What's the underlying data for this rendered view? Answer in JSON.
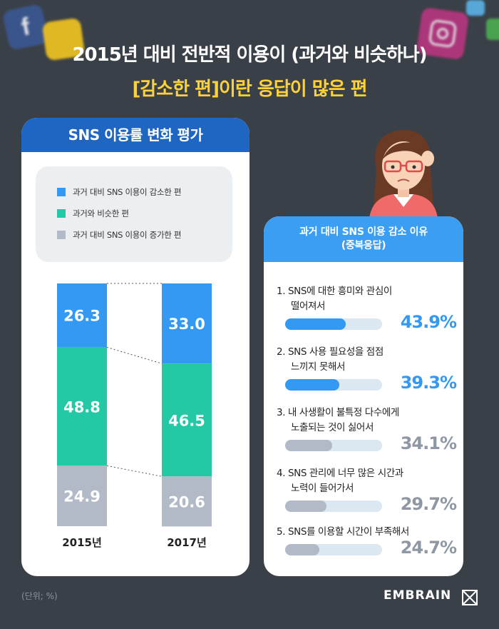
{
  "header": {
    "line1": "2015년 대비 전반적 이용이 (과거와 비슷하나)",
    "line2": "[감소한 편]이란 응답이 많은 편"
  },
  "colors": {
    "background": "#3a4047",
    "decreased": "#3399f3",
    "similar": "#22c9a4",
    "increased": "#b1bac6",
    "highlight": "#fbd13c",
    "title_bar": "#1f66c2",
    "right_title_bar": "#3b9ef3"
  },
  "left_card": {
    "title": "SNS 이용률 변화 평가",
    "legend": [
      {
        "label": "과거 대비 SNS 이용이 감소한 편",
        "color": "#3399f3"
      },
      {
        "label": "과거와 비슷한 편",
        "color": "#22c9a4"
      },
      {
        "label": "과거 대비 SNS 이용이 증가한 편",
        "color": "#b1bac6"
      }
    ]
  },
  "chart_data": [
    {
      "type": "bar",
      "stacked": true,
      "title": "SNS 이용률 변화 평가",
      "categories": [
        "2015년",
        "2017년"
      ],
      "series": [
        {
          "name": "과거 대비 SNS 이용이 감소한 편",
          "values": [
            26.3,
            33.0
          ],
          "labels": [
            "26.3",
            "33.0"
          ],
          "color": "#3399f3"
        },
        {
          "name": "과거와 비슷한 편",
          "values": [
            48.8,
            46.5
          ],
          "labels": [
            "48.8",
            "46.5"
          ],
          "color": "#22c9a4"
        },
        {
          "name": "과거 대비 SNS 이용이 증가한 편",
          "values": [
            24.9,
            20.6
          ],
          "labels": [
            "24.9",
            "20.6"
          ],
          "color": "#b1bac6"
        }
      ],
      "ylim": [
        0,
        100
      ]
    },
    {
      "type": "bar",
      "orientation": "horizontal",
      "title": "과거 대비 SNS 이용 감소 이유",
      "subtitle": "(중복응답)",
      "categories": [
        "SNS에 대한 흥미와 관심이 떨어져서",
        "SNS 사용 필요성을 점점 느끼지 못해서",
        "내 사생활이 불특정 다수에게 노출되는 것이 싫어서",
        "SNS 관리에 너무 많은 시간과 노력이 들어가서",
        "SNS를 이용할 시간이 부족해서"
      ],
      "values": [
        43.9,
        39.3,
        34.1,
        29.7,
        24.7
      ],
      "xlim": [
        0,
        100
      ]
    }
  ],
  "right_card": {
    "title": "과거 대비 SNS 이용 감소 이유",
    "subtitle": "(중복응답)",
    "reasons": [
      {
        "line1": "1. SNS에 대한 흥미와 관심이",
        "line2": "떨어져서",
        "pct": "43.9%",
        "value": 43.9,
        "highlight": true
      },
      {
        "line1": "2. SNS 사용 필요성을 점점",
        "line2": "느끼지 못해서",
        "pct": "39.3%",
        "value": 39.3,
        "highlight": true
      },
      {
        "line1": "3. 내 사생활이 불특정 다수에게",
        "line2": "노출되는 것이 싫어서",
        "pct": "34.1%",
        "value": 34.1,
        "highlight": false
      },
      {
        "line1": "4. SNS 관리에 너무 많은 시간과",
        "line2": "노력이 들어가서",
        "pct": "29.7%",
        "value": 29.7,
        "highlight": false
      },
      {
        "line1": "5. SNS를 이용할 시간이 부족해서",
        "line2": "",
        "pct": "24.7%",
        "value": 24.7,
        "highlight": false
      }
    ]
  },
  "footer": {
    "unit": "(단위; %)",
    "brand": "EMBRAIN"
  }
}
